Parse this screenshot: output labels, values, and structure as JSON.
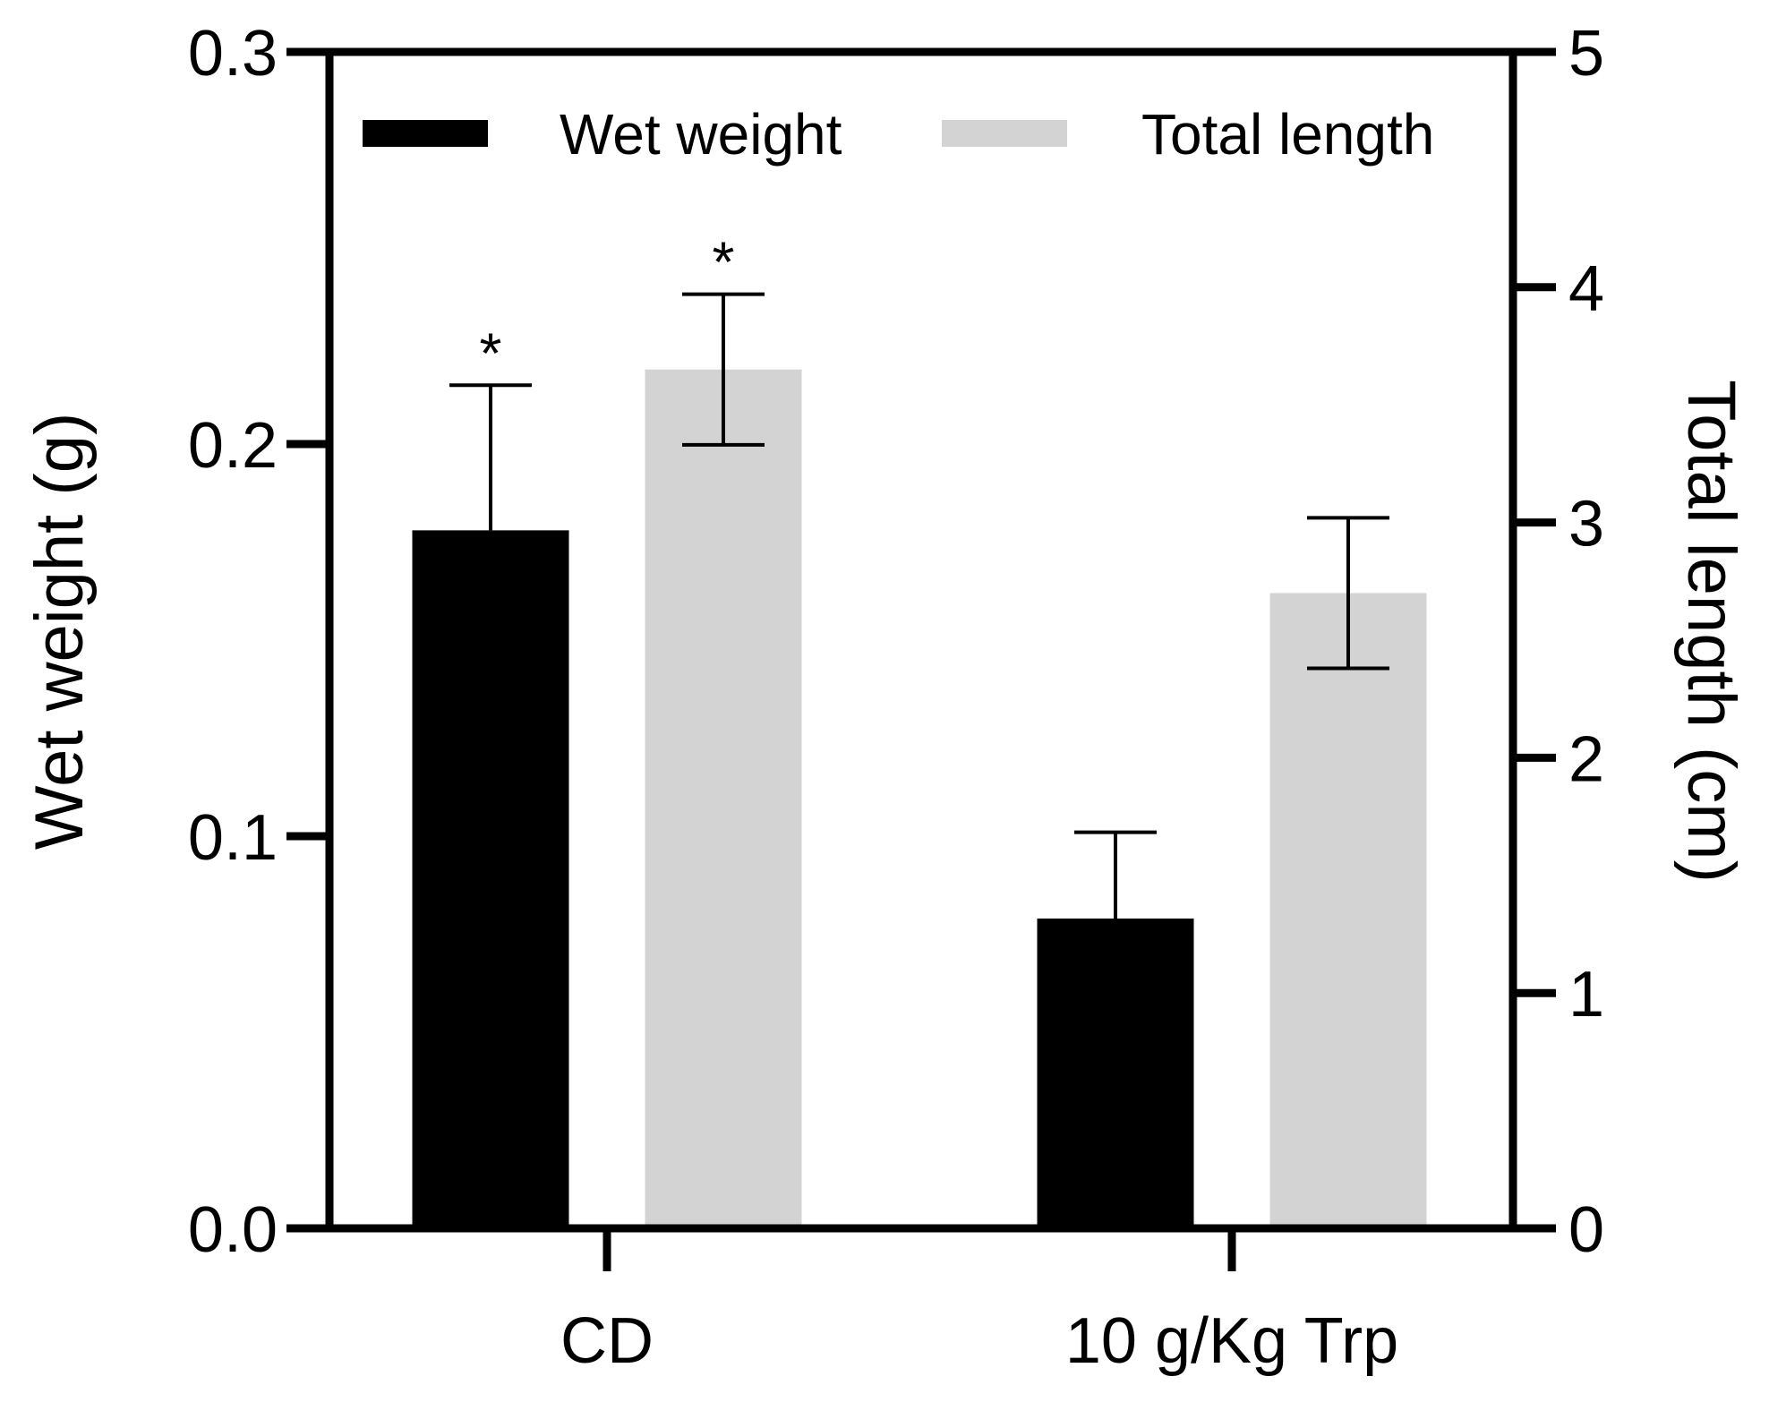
{
  "chart_data": {
    "type": "bar",
    "categories": [
      "CD",
      "10 g/Kg Trp"
    ],
    "series": [
      {
        "name": "Wet weight",
        "axis": "left",
        "color": "#000000",
        "values": [
          0.178,
          0.079
        ],
        "errors": [
          0.037,
          0.022
        ],
        "significance": [
          "*",
          ""
        ]
      },
      {
        "name": "Total length",
        "axis": "right",
        "color": "#d3d3d3",
        "values": [
          3.65,
          2.7
        ],
        "errors": [
          0.32,
          0.32
        ],
        "significance": [
          "*",
          ""
        ]
      }
    ],
    "y_left": {
      "label": "Wet weight (g)",
      "ylim": [
        0,
        0.3
      ],
      "ticks": [
        "0.0",
        "0.1",
        "0.2",
        "0.3"
      ]
    },
    "y_right": {
      "label": "Total length (cm)",
      "ylim": [
        0,
        5
      ],
      "ticks": [
        "0",
        "1",
        "2",
        "3",
        "4",
        "5"
      ]
    },
    "legend": {
      "position": "top",
      "entries": [
        "Wet weight",
        "Total length"
      ]
    },
    "title": "",
    "xlabel": ""
  }
}
